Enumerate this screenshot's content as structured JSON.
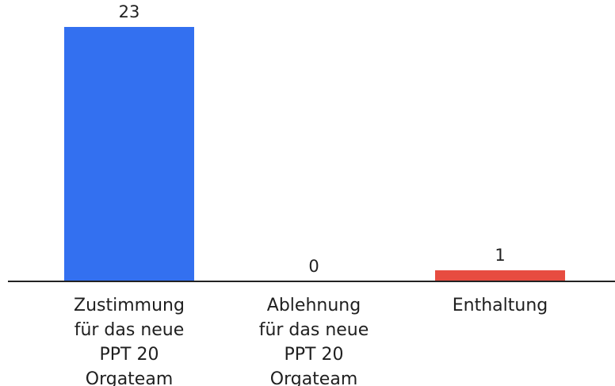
{
  "chart_data": {
    "type": "bar",
    "categories": [
      [
        "Zustimmung",
        "für das neue",
        "PPT 20",
        "Orgateam"
      ],
      [
        "Ablehnung",
        "für das neue",
        "PPT 20",
        "Orgateam"
      ],
      [
        "Enthaltung"
      ]
    ],
    "values": [
      23,
      0,
      1
    ],
    "colors": [
      "#3370F0",
      "#3370F0",
      "#E74C40"
    ],
    "value_labels": [
      "23",
      "0",
      "1"
    ],
    "ylim": [
      0,
      23
    ],
    "grid": false,
    "legend": "none",
    "title": "",
    "xlabel": "",
    "ylabel": ""
  }
}
